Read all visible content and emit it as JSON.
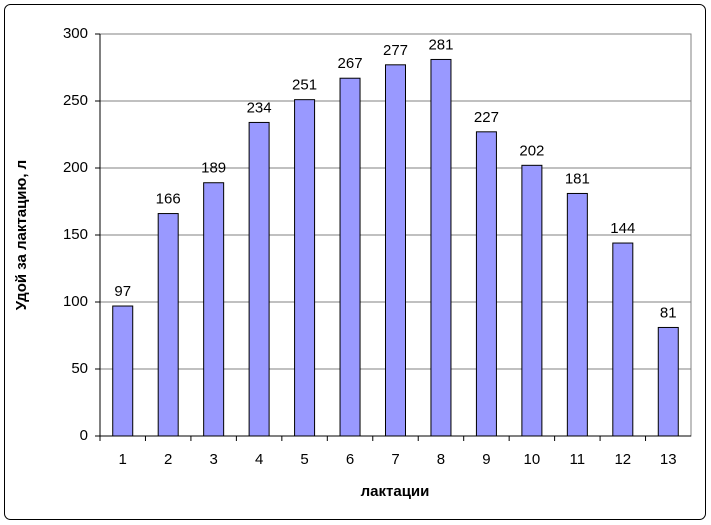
{
  "chart_data": {
    "type": "bar",
    "x_label": "лактации",
    "y_label": "Удой за лактацию, л",
    "categories": [
      "1",
      "2",
      "3",
      "4",
      "5",
      "6",
      "7",
      "8",
      "9",
      "10",
      "11",
      "12",
      "13"
    ],
    "values": [
      97,
      166,
      189,
      234,
      251,
      267,
      277,
      281,
      227,
      202,
      181,
      144,
      81
    ],
    "color": "#9999ff",
    "ylim": [
      0,
      300
    ],
    "yticks": [
      0,
      50,
      100,
      150,
      200,
      250,
      300
    ],
    "grid": true
  }
}
